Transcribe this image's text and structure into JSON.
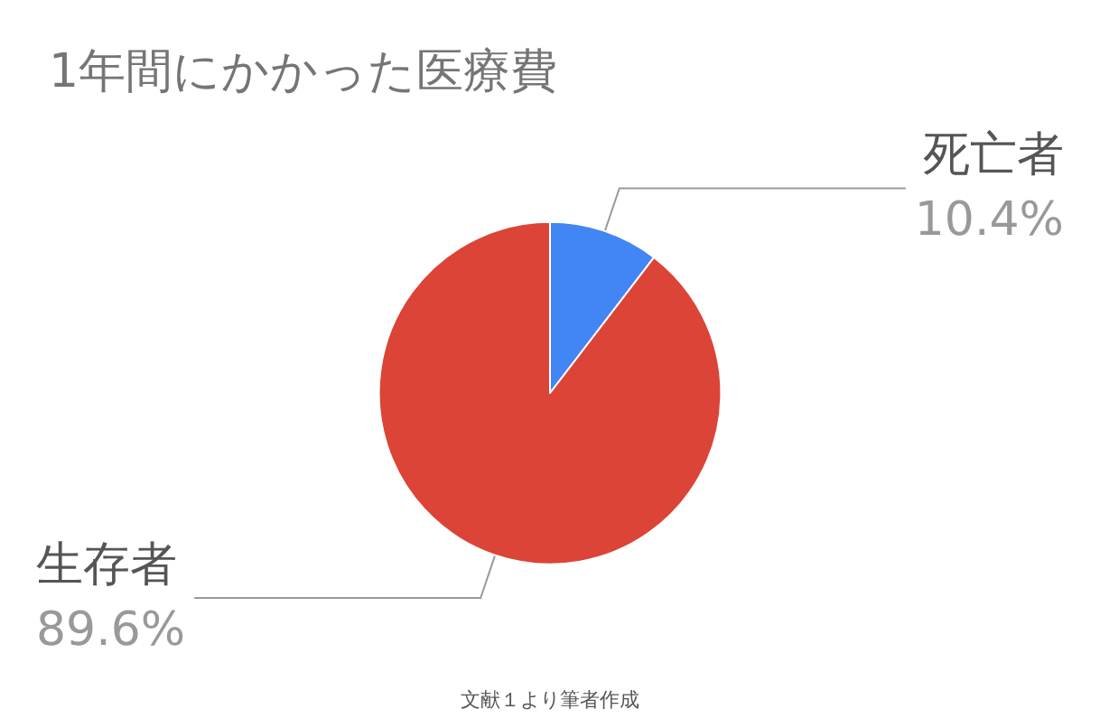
{
  "chart_data": {
    "type": "pie",
    "title": "1年間にかかった医療費",
    "categories": [
      "死亡者",
      "生存者"
    ],
    "values": [
      10.4,
      89.6
    ],
    "colors": [
      "#4285f4",
      "#db4437"
    ],
    "value_labels": [
      "10.4%",
      "89.6%"
    ],
    "annotations": [
      "文献１より筆者作成"
    ],
    "legend": false
  }
}
